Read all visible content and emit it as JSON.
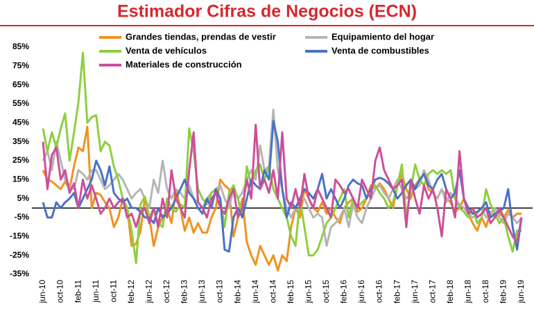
{
  "chart_data": {
    "type": "line",
    "title": "Estimador Cifras de Negocios (ECN)",
    "categories": [
      "jun-10",
      null,
      null,
      null,
      "oct-10",
      null,
      null,
      null,
      "feb-11",
      null,
      null,
      null,
      "jun-11",
      null,
      null,
      null,
      "oct-11",
      null,
      null,
      null,
      "feb-12",
      null,
      null,
      null,
      "jun-12",
      null,
      null,
      null,
      "oct-12",
      null,
      null,
      null,
      "feb-13",
      null,
      null,
      null,
      "jun-13",
      null,
      null,
      null,
      "oct-13",
      null,
      null,
      null,
      "feb-14",
      null,
      null,
      null,
      "jun-14",
      null,
      null,
      null,
      "oct-14",
      null,
      null,
      null,
      "feb-15",
      null,
      null,
      null,
      "jun-15",
      null,
      null,
      null,
      "oct-15",
      null,
      null,
      null,
      "feb-16",
      null,
      null,
      null,
      "jun-16",
      null,
      null,
      null,
      "oct-16",
      null,
      null,
      null,
      "feb-17",
      null,
      null,
      null,
      "jun-17",
      null,
      null,
      null,
      "oct-17",
      null,
      null,
      null,
      "feb-18",
      null,
      null,
      null,
      "jun-18",
      null,
      null,
      null,
      "oct-18",
      null,
      null,
      null,
      "feb-19",
      null,
      null,
      null,
      "jun-19"
    ],
    "series": [
      {
        "name": "Grandes tiendas, prendas de vestir",
        "color": "#f0921e",
        "values": [
          20,
          15,
          14,
          12,
          10,
          14,
          10,
          22,
          32,
          30,
          43,
          0,
          8,
          7,
          3,
          0,
          -10,
          -5,
          5,
          0,
          -20,
          -19,
          -12,
          5,
          -5,
          -20,
          -10,
          -5,
          0,
          -8,
          10,
          0,
          -12,
          -5,
          -13,
          -8,
          -13,
          -13,
          -5,
          0,
          15,
          12,
          10,
          -15,
          -5,
          5,
          -18,
          -25,
          -30,
          -20,
          -25,
          -30,
          -25,
          -33,
          -25,
          -28,
          -10,
          0,
          -5,
          10,
          5,
          0,
          -2,
          3,
          -3,
          0,
          -5,
          -8,
          0,
          3,
          5,
          -2,
          0,
          5,
          12,
          10,
          13,
          10,
          5,
          0,
          12,
          18,
          10,
          5,
          12,
          15,
          18,
          10,
          8,
          5,
          10,
          5,
          3,
          -2,
          0,
          5,
          -3,
          -8,
          -12,
          -5,
          -10,
          -2,
          -5,
          -3,
          -5,
          -1,
          -5,
          -3,
          -3
        ]
      },
      {
        "name": "Equipamiento del hogar",
        "color": "#b5b5b5",
        "values": [
          25,
          30,
          20,
          35,
          25,
          15,
          12,
          10,
          20,
          18,
          15,
          20,
          20,
          15,
          10,
          12,
          15,
          18,
          15,
          10,
          5,
          8,
          10,
          5,
          0,
          15,
          8,
          25,
          10,
          5,
          10,
          8,
          5,
          12,
          5,
          3,
          0,
          5,
          8,
          10,
          12,
          5,
          0,
          10,
          5,
          8,
          15,
          20,
          15,
          33,
          20,
          22,
          52,
          20,
          10,
          0,
          -5,
          0,
          5,
          5,
          0,
          -5,
          -3,
          -5,
          -20,
          -10,
          -8,
          -5,
          0,
          -10,
          2,
          -5,
          -8,
          0,
          5,
          10,
          12,
          8,
          5,
          10,
          15,
          10,
          5,
          8,
          10,
          12,
          20,
          15,
          8,
          5,
          10,
          3,
          8,
          5,
          2,
          0,
          -3,
          -5,
          -3,
          0,
          -5,
          -3,
          0,
          -5,
          -8,
          -3,
          -5,
          -8,
          -5
        ]
      },
      {
        "name": "Venta de vehículos",
        "color": "#8dcf3f",
        "values": [
          42,
          30,
          40,
          32,
          42,
          50,
          25,
          40,
          56,
          82,
          45,
          48,
          49,
          30,
          35,
          33,
          22,
          15,
          5,
          0,
          -12,
          -29,
          2,
          6,
          -5,
          0,
          -8,
          -10,
          5,
          0,
          -2,
          2,
          0,
          42,
          30,
          10,
          5,
          2,
          8,
          10,
          5,
          -10,
          8,
          12,
          5,
          -5,
          22,
          12,
          20,
          23,
          15,
          22,
          10,
          5,
          0,
          -5,
          -15,
          -20,
          5,
          -10,
          -25,
          -25,
          -22,
          -15,
          -8,
          -5,
          0,
          5,
          10,
          -5,
          5,
          0,
          3,
          5,
          10,
          12,
          8,
          5,
          0,
          3,
          12,
          23,
          -5,
          10,
          23,
          15,
          12,
          18,
          20,
          18,
          20,
          18,
          20,
          5,
          0,
          -2,
          -5,
          0,
          -8,
          -5,
          10,
          2,
          -3,
          -8,
          -5,
          -15,
          -23,
          -12,
          -12
        ]
      },
      {
        "name": "Venta de combustibles",
        "color": "#4a72c4",
        "values": [
          3,
          -5,
          -5,
          3,
          0,
          3,
          5,
          8,
          0,
          5,
          10,
          15,
          25,
          20,
          12,
          22,
          8,
          5,
          3,
          5,
          0,
          0,
          -2,
          -5,
          -5,
          -8,
          0,
          -5,
          -3,
          0,
          5,
          10,
          15,
          8,
          5,
          0,
          -3,
          5,
          0,
          10,
          5,
          -22,
          -23,
          -5,
          0,
          -5,
          5,
          15,
          12,
          10,
          20,
          15,
          46,
          35,
          10,
          -5,
          3,
          0,
          5,
          10,
          8,
          5,
          10,
          18,
          5,
          10,
          5,
          0,
          5,
          12,
          15,
          13,
          12,
          5,
          10,
          15,
          16,
          15,
          13,
          10,
          5,
          8,
          12,
          15,
          10,
          15,
          18,
          12,
          10,
          15,
          18,
          10,
          5,
          8,
          20,
          5,
          0,
          -3,
          -2,
          0,
          3,
          -5,
          -3,
          -2,
          0,
          10,
          -10,
          -22,
          -5
        ]
      },
      {
        "name": "Materiales de construcción",
        "color": "#cc4f9a",
        "values": [
          35,
          10,
          28,
          32,
          15,
          20,
          8,
          13,
          0,
          15,
          5,
          12,
          5,
          -3,
          0,
          5,
          0,
          3,
          5,
          -5,
          -3,
          -10,
          -2,
          0,
          -8,
          0,
          -10,
          5,
          -5,
          20,
          5,
          0,
          -5,
          20,
          40,
          3,
          0,
          -5,
          5,
          8,
          0,
          -3,
          5,
          10,
          -5,
          0,
          15,
          5,
          44,
          10,
          15,
          8,
          20,
          5,
          40,
          5,
          0,
          10,
          0,
          18,
          5,
          0,
          10,
          5,
          0,
          -5,
          15,
          12,
          8,
          10,
          5,
          0,
          15,
          10,
          5,
          25,
          32,
          20,
          15,
          10,
          12,
          15,
          -10,
          15,
          5,
          -3,
          12,
          5,
          10,
          0,
          -15,
          10,
          5,
          -5,
          30,
          5,
          -3,
          0,
          -5,
          -3,
          0,
          -8,
          -5,
          0,
          -5,
          -10,
          -15,
          -18,
          -5
        ]
      }
    ],
    "ylim": [
      -35,
      85
    ],
    "yticks": [
      {
        "value": -35,
        "label": "-35%"
      },
      {
        "value": -25,
        "label": "-25%"
      },
      {
        "value": -15,
        "label": "-15%"
      },
      {
        "value": -5,
        "label": "-5%"
      },
      {
        "value": 5,
        "label": "5%"
      },
      {
        "value": 15,
        "label": "15%"
      },
      {
        "value": 25,
        "label": "25%"
      },
      {
        "value": 35,
        "label": "35%"
      },
      {
        "value": 45,
        "label": "45%"
      },
      {
        "value": 55,
        "label": "55%"
      },
      {
        "value": 65,
        "label": "65%"
      },
      {
        "value": 75,
        "label": "75%"
      },
      {
        "value": 85,
        "label": "85%"
      }
    ],
    "grid": false
  }
}
